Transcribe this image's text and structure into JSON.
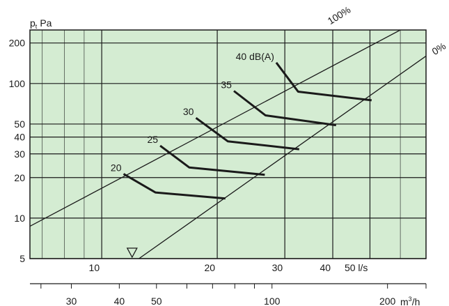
{
  "chart_data": {
    "type": "line",
    "title": "",
    "ylabel": {
      "main": "p",
      "subscript": "t",
      "unit": "Pa"
    },
    "xlabel_ls": "l/s",
    "xlabel_m3h": {
      "base": "m",
      "sup": "3",
      "suffix": "/h"
    },
    "y_scale": "log",
    "x_scale": "log",
    "ylim": [
      5,
      250
    ],
    "xlim_ls": [
      6.5,
      70
    ],
    "y_ticks": [
      5,
      10,
      20,
      30,
      40,
      50,
      100,
      200
    ],
    "y_tick_labels": [
      "5",
      "10",
      "20",
      "30",
      "40",
      "50",
      "100",
      "200"
    ],
    "x_ticks_ls": [
      10,
      20,
      30,
      40,
      50
    ],
    "x_tick_labels_ls": [
      "10",
      "20",
      "30",
      "40",
      "50  l/s"
    ],
    "x_grid_ls": [
      7,
      8,
      9,
      10,
      20,
      30,
      40,
      50,
      60
    ],
    "x_ticks_m3h": [
      30,
      40,
      50,
      100,
      200
    ],
    "x_tick_labels_m3h": [
      "30",
      "40",
      "50",
      "100",
      "200"
    ],
    "x_minor_m3h": [
      60,
      70,
      80,
      90
    ],
    "grid": true,
    "background_color": "#d4ecd2",
    "line_color": "#1a1a1a",
    "damper_lines": [
      {
        "label": "100%",
        "points": [
          [
            6.5,
            8.7
          ],
          [
            60,
            250
          ]
        ]
      },
      {
        "label": "0%",
        "points": [
          [
            12.5,
            5
          ],
          [
            70,
            160
          ]
        ]
      }
    ],
    "noise_curves": [
      {
        "label": "20",
        "points": [
          [
            11.4,
            21.3
          ],
          [
            13.8,
            15.5
          ],
          [
            21,
            14
          ]
        ]
      },
      {
        "label": "25",
        "points": [
          [
            14.2,
            34.5
          ],
          [
            16.9,
            23.8
          ],
          [
            26.6,
            21
          ]
        ]
      },
      {
        "label": "30",
        "points": [
          [
            17.6,
            55.5
          ],
          [
            21.3,
            37.2
          ],
          [
            32.7,
            32.5
          ]
        ]
      },
      {
        "label": "35",
        "points": [
          [
            22.1,
            88
          ],
          [
            26.7,
            58
          ],
          [
            40.8,
            49
          ]
        ]
      },
      {
        "label": "40 dB(A)",
        "points": [
          [
            28.5,
            143
          ],
          [
            32.5,
            87
          ],
          [
            50.5,
            75
          ]
        ]
      }
    ],
    "marker": {
      "shape": "triangle-down",
      "x_ls": 12
    }
  }
}
